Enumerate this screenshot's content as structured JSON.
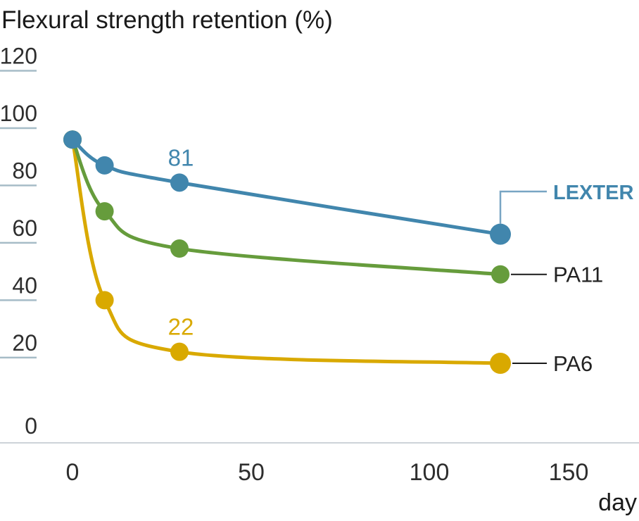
{
  "title": "Flexural strength retention (%)",
  "x_axis": {
    "unit_label": "day",
    "tick_labels": [
      "0",
      "50",
      "100",
      "150"
    ]
  },
  "y_axis": {
    "tick_labels": [
      "120",
      "100",
      "80",
      "60",
      "40",
      "20",
      "0"
    ]
  },
  "chart_data": {
    "type": "line",
    "title": "Flexural strength retention (%)",
    "xlabel": "day",
    "ylabel": "Flexural strength retention (%)",
    "x": [
      0,
      9,
      30,
      120
    ],
    "x_ticks": [
      0,
      50,
      100,
      150
    ],
    "y_ticks": [
      120,
      100,
      80,
      60,
      40,
      20,
      0
    ],
    "xlim": [
      0,
      158
    ],
    "ylim": [
      0,
      120
    ],
    "grid": false,
    "legend_position": "right-end-labels",
    "series": [
      {
        "name": "LEXTER",
        "color": "#4186ad",
        "values": [
          96,
          87,
          81,
          63
        ],
        "point_label": {
          "index": 2,
          "text": "81"
        }
      },
      {
        "name": "PA11",
        "color": "#669c3c",
        "values": [
          96,
          71,
          58,
          49
        ]
      },
      {
        "name": "PA6",
        "color": "#d9a900",
        "values": [
          96,
          40,
          22,
          18
        ],
        "point_label": {
          "index": 2,
          "text": "22"
        }
      }
    ]
  },
  "palette": {
    "lexter_blue": "#4186ad",
    "pa11_green": "#669c3c",
    "pa6_yellow": "#d9a900",
    "tick_line": "#a6bcc7",
    "axis_line": "#cdd3d8",
    "axis_text": "#2e2e2e",
    "title_text": "#1a1a1a",
    "leader_dark": "#1a1a1a",
    "leader_blue": "#78a5c3"
  }
}
